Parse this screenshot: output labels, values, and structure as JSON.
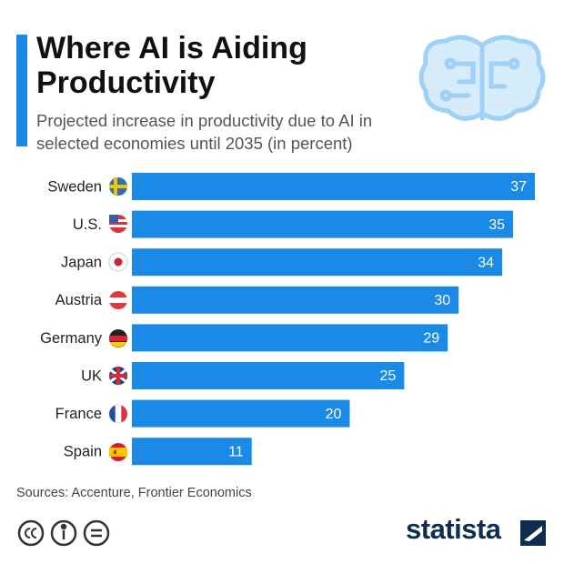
{
  "chart_data": {
    "type": "bar",
    "orientation": "horizontal",
    "title": "Where AI is Aiding Productivity",
    "subtitle": "Projected increase in productivity due to AI in selected economies until 2035 (in percent)",
    "categories": [
      "Sweden",
      "U.S.",
      "Japan",
      "Austria",
      "Germany",
      "UK",
      "France",
      "Spain"
    ],
    "values": [
      37,
      35,
      34,
      30,
      29,
      25,
      20,
      11
    ],
    "color": "#1b8ae6",
    "source": "Sources: Accenture, Frontier Economics",
    "logo": "statista"
  }
}
